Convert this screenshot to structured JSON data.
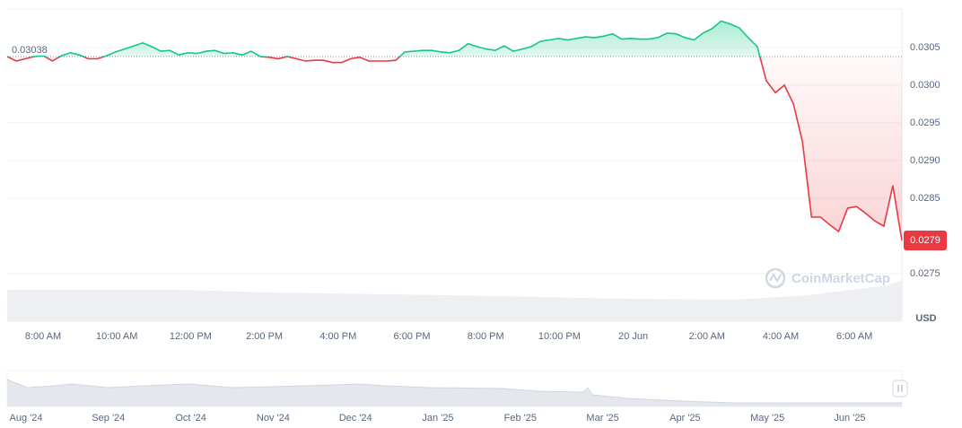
{
  "chart_data": {
    "type": "line",
    "values": [
      0.03038,
      0.03032,
      0.03035,
      0.03038,
      0.03039,
      0.03032,
      0.03039,
      0.03043,
      0.0304,
      0.03035,
      0.03035,
      0.03039,
      0.03044,
      0.03048,
      0.03052,
      0.03056,
      0.03051,
      0.03045,
      0.03046,
      0.0304,
      0.03043,
      0.03042,
      0.03045,
      0.03046,
      0.03042,
      0.03043,
      0.0304,
      0.03045,
      0.03038,
      0.03037,
      0.03035,
      0.03038,
      0.03035,
      0.03032,
      0.03033,
      0.03033,
      0.0303,
      0.0303,
      0.03035,
      0.03037,
      0.03032,
      0.03032,
      0.03032,
      0.03033,
      0.03044,
      0.03045,
      0.03046,
      0.03046,
      0.03044,
      0.03043,
      0.03046,
      0.03055,
      0.03051,
      0.03048,
      0.03046,
      0.03052,
      0.03045,
      0.03048,
      0.03051,
      0.03058,
      0.0306,
      0.03062,
      0.0306,
      0.03062,
      0.03064,
      0.03063,
      0.03065,
      0.03068,
      0.03061,
      0.03062,
      0.03061,
      0.03061,
      0.03063,
      0.03069,
      0.03068,
      0.03063,
      0.0306,
      0.03069,
      0.03075,
      0.03085,
      0.03081,
      0.03076,
      0.03063,
      0.03051,
      0.03006,
      0.0299,
      0.03,
      0.02975,
      0.02925,
      0.02825,
      0.02825,
      0.02815,
      0.02806,
      0.02837,
      0.02839,
      0.0283,
      0.0282,
      0.02813,
      0.02867,
      0.02794
    ],
    "up_color": "#16c784",
    "down_color": "#ea3943",
    "reference": 0.03038,
    "last_price": {
      "value": 0.02794,
      "label": "0.0279"
    },
    "ylim": [
      0.02687,
      0.03101
    ],
    "yticks": [
      0.0275,
      0.0285,
      {
        "value": 0.029,
        "label": "0.0290"
      },
      0.0295,
      {
        "value": 0.03,
        "label": "0.0300"
      },
      0.0305
    ],
    "grid": true,
    "x_tick_labels": [
      "8:00 AM",
      "10:00 AM",
      "12:00 PM",
      "2:00 PM",
      "4:00 PM",
      "6:00 PM",
      "8:00 PM",
      "10:00 PM",
      "20 Jun",
      "2:00 AM",
      "4:00 AM",
      "6:00 AM"
    ],
    "unit": "USD",
    "watermark": "CoinMarketCap",
    "navigator_labels": [
      "Aug '24",
      "Sep '24",
      "Oct '24",
      "Nov '24",
      "Dec '24",
      "Jan '25",
      "Feb '25",
      "Mar '25",
      "Apr '25",
      "May '25",
      "Jun '25"
    ]
  }
}
